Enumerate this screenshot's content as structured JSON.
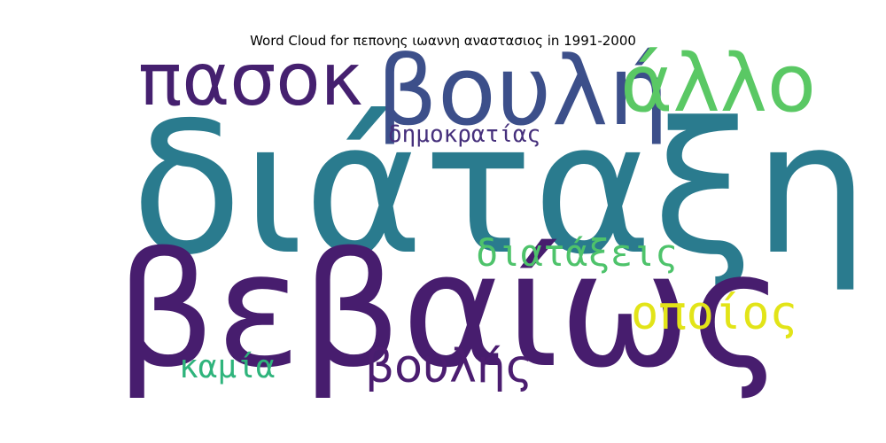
{
  "chart_data": {
    "type": "wordcloud",
    "title": "Word Cloud for πεπονης ιωαννη αναστασιος in 1991-2000",
    "words": [
      {
        "text": "διάταξη",
        "weight": 1.0,
        "color": "#2a7b8e"
      },
      {
        "text": "βεβαίως",
        "weight": 0.86,
        "color": "#471d6e"
      },
      {
        "text": "βουλή",
        "weight": 0.52,
        "color": "#3c4f8a"
      },
      {
        "text": "πασοκ",
        "weight": 0.46,
        "color": "#45206f"
      },
      {
        "text": "άλλο",
        "weight": 0.45,
        "color": "#5ac864"
      },
      {
        "text": "οποίος",
        "weight": 0.3,
        "color": "#e2e418"
      },
      {
        "text": "βουλής",
        "weight": 0.27,
        "color": "#4b1d70"
      },
      {
        "text": "διατάξεις",
        "weight": 0.24,
        "color": "#4ec36b"
      },
      {
        "text": "καμία",
        "weight": 0.2,
        "color": "#2fb47c"
      },
      {
        "text": "δημοκρατίας",
        "weight": 0.14,
        "color": "#46307c"
      }
    ]
  }
}
